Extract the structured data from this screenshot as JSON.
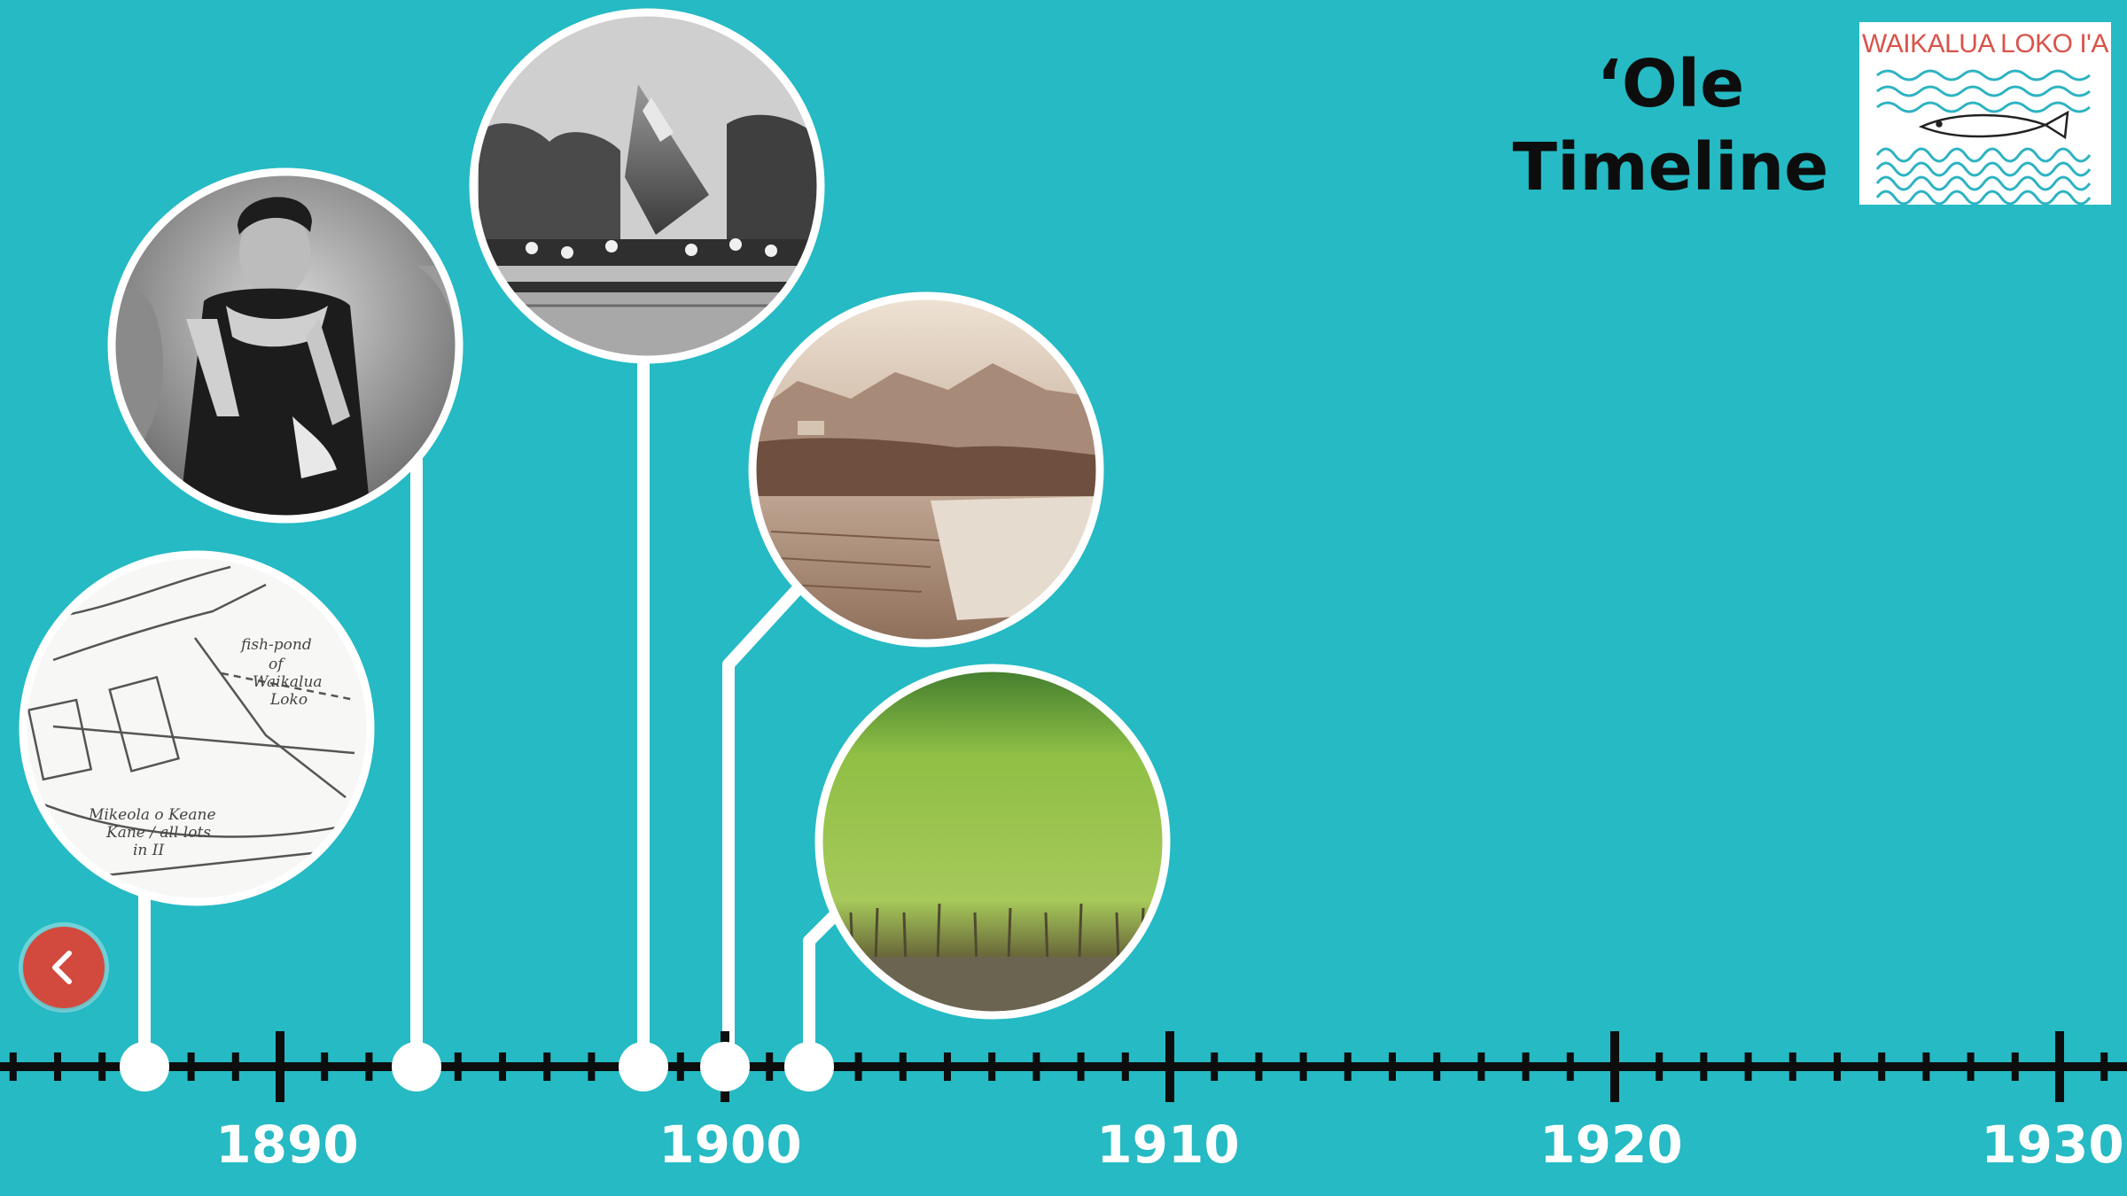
{
  "title": {
    "line1": "‘Ole",
    "line2": "Timeline"
  },
  "logo": {
    "text": "WAIKALUA LOKO I'A"
  },
  "axis": {
    "tick_labels": [
      "1890",
      "1900",
      "1910",
      "1920",
      "1930"
    ]
  },
  "back_button": {
    "icon": "chevron-left-icon"
  },
  "events": [
    {
      "image": "map-fishpond-photo",
      "map_text": [
        "fish-pond",
        "of",
        "Waikalua",
        "Loko",
        "Mikeola o Keane",
        "Kane / all lots",
        "in II"
      ]
    },
    {
      "image": "portrait-queen-photo"
    },
    {
      "image": "flag-ceremony-photo"
    },
    {
      "image": "taro-fields-photo"
    },
    {
      "image": "mangrove-photo"
    }
  ],
  "colors": {
    "background": "#25bac4",
    "axis": "#0d0d0d",
    "connector": "#ffffff",
    "button": "#d24a3d",
    "logo_text": "#d9534a",
    "logo_waves": "#2db3c2"
  }
}
